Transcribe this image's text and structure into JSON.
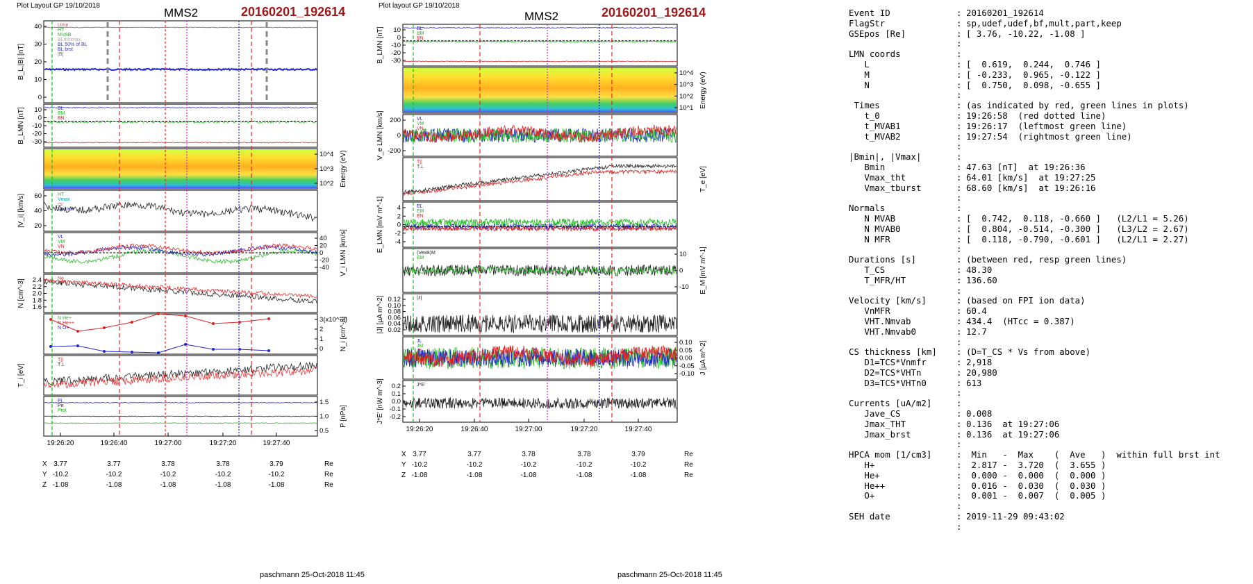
{
  "left_plot": {
    "layout_label": "Plot Layout GP 19/10/2018",
    "spacecraft": "MMS2",
    "event_id": "20160201_192614",
    "footer": "paschmann 25-Oct-2018 11:45",
    "time_ticks": [
      "19:26:20",
      "19:26:40",
      "19:27:00",
      "19:27:20",
      "19:27:40"
    ],
    "position_table": {
      "rows": [
        {
          "label": "X",
          "values": [
            "3.77",
            "3.77",
            "3.78",
            "3.78",
            "3.79"
          ],
          "unit": "Re"
        },
        {
          "label": "Y",
          "values": [
            "-10.2",
            "-10.2",
            "-10.2",
            "-10.2",
            "-10.2"
          ],
          "unit": "Re"
        },
        {
          "label": "Z",
          "values": [
            "-1.08",
            "-1.08",
            "-1.08",
            "-1.08",
            "-1.08"
          ],
          "unit": "Re"
        }
      ]
    },
    "panels": [
      {
        "ylabel": "B_L,|B| [nT]",
        "side": "left",
        "ticks": [
          "40",
          "30",
          "20",
          "10",
          "0"
        ],
        "legend": [
          "Ltmn",
          "HT",
          "MVAB",
          "BLminmax",
          "BL 50% of BL",
          "BL brst",
          "|B|"
        ],
        "legend_colors": [
          "#e33",
          "#3a3",
          "#3a3",
          "#aaa",
          "#33c",
          "#33c",
          "#666"
        ]
      },
      {
        "ylabel": "B_LMN [nT]",
        "side": "left",
        "ticks": [
          "10",
          "0",
          "-10",
          "-20",
          "-30"
        ],
        "legend": [
          "BL",
          "BM",
          "BN"
        ],
        "legend_colors": [
          "#22c",
          "#2b2",
          "#d22"
        ]
      },
      {
        "ylabel": "Energy (eV)",
        "side": "right",
        "ticks": [
          "10^4",
          "10^3",
          "10^2"
        ],
        "legend": [],
        "legend_colors": []
      },
      {
        "ylabel": "|V_i| [km/s]",
        "side": "left",
        "ticks": [
          "60",
          "40",
          "20"
        ],
        "legend": [
          "HT",
          "Vmax",
          "cs",
          "Vp max"
        ],
        "legend_colors": [
          "#3a3",
          "#0aa",
          "#e33",
          "#33c"
        ]
      },
      {
        "ylabel": "V_i LMN [km/s]",
        "side": "right",
        "ticks": [
          "40",
          "20",
          "0",
          "-20",
          "-40"
        ],
        "legend": [
          "VL",
          "VM",
          "VN"
        ],
        "legend_colors": [
          "#22c",
          "#2b2",
          "#d22"
        ]
      },
      {
        "ylabel": "N [cm^-3]",
        "side": "left",
        "ticks": [
          "2.4",
          "2.2",
          "2.0",
          "1.8",
          "1.6"
        ],
        "legend": [
          "Ne",
          "Ni"
        ],
        "legend_colors": [
          "#e33",
          "#222"
        ]
      },
      {
        "ylabel": "N_i [cm^-3]",
        "side": "right",
        "ticks": [
          "3(x10^-2)",
          "2",
          "1",
          "0"
        ],
        "legend": [
          "N He+",
          "N He++",
          "N O+"
        ],
        "legend_colors": [
          "#2b2",
          "#d22",
          "#22c"
        ]
      },
      {
        "ylabel": "T_i [eV]",
        "side": "left",
        "ticks": [],
        "legend": [
          "T||",
          "T⊥"
        ],
        "legend_colors": [
          "#d22",
          "#222"
        ]
      },
      {
        "ylabel": "P [nPa]",
        "side": "right",
        "ticks": [
          "1.5",
          "1.0",
          "0.5"
        ],
        "legend": [
          "Pi",
          "Pe",
          "Ptot"
        ],
        "legend_colors": [
          "#22c",
          "#222",
          "#2b2"
        ]
      }
    ]
  },
  "mid_plot": {
    "layout_label": "Plot layout GP 19/10/2018",
    "spacecraft": "MMS2",
    "event_id": "20160201_192614",
    "footer": "paschmann 25-Oct-2018 11:45",
    "time_ticks": [
      "19:26:20",
      "19:26:40",
      "19:27:00",
      "19:27:20",
      "19:27:40"
    ],
    "position_table": {
      "rows": [
        {
          "label": "X",
          "values": [
            "3.77",
            "3.77",
            "3.78",
            "3.78",
            "3.79"
          ],
          "unit": "Re"
        },
        {
          "label": "Y",
          "values": [
            "-10.2",
            "-10.2",
            "-10.2",
            "-10.2",
            "-10.2"
          ],
          "unit": "Re"
        },
        {
          "label": "Z",
          "values": [
            "-1.08",
            "-1.08",
            "-1.08",
            "-1.08",
            "-1.08"
          ],
          "unit": "Re"
        }
      ]
    },
    "panels": [
      {
        "ylabel": "B_LMN [nT]",
        "side": "left",
        "ticks": [
          "10",
          "0",
          "-10",
          "-20",
          "-30"
        ],
        "legend": [
          "BL",
          "BM",
          "BN"
        ],
        "legend_colors": [
          "#22c",
          "#2b2",
          "#d22"
        ]
      },
      {
        "ylabel": "Energy (eV)",
        "side": "right",
        "ticks": [
          "10^4",
          "10^3",
          "10^2",
          "10^1"
        ],
        "legend": [],
        "legend_colors": []
      },
      {
        "ylabel": "V_e LMN [km/s]",
        "side": "left",
        "ticks": [
          "200",
          "0",
          "-200"
        ],
        "legend": [
          "VL",
          "VM",
          "VN"
        ],
        "legend_colors": [
          "#22c",
          "#2b2",
          "#d22"
        ]
      },
      {
        "ylabel": "T_e [eV]",
        "side": "right",
        "ticks": [],
        "legend": [
          "T||",
          "T⊥"
        ],
        "legend_colors": [
          "#d22",
          "#222"
        ]
      },
      {
        "ylabel": "E_LMN [mV m^-1]",
        "side": "left",
        "ticks": [
          "4",
          "2",
          "0",
          "-2",
          "-4"
        ],
        "legend": [
          "EL",
          "EM",
          "EN"
        ],
        "legend_colors": [
          "#22c",
          "#2b2",
          "#d22"
        ]
      },
      {
        "ylabel": "E_M [mV m^-1]",
        "side": "right",
        "ticks": [
          "10",
          "0",
          "-10"
        ],
        "legend": [
          "(VexB)M",
          "EM"
        ],
        "legend_colors": [
          "#222",
          "#2b2"
        ]
      },
      {
        "ylabel": "|J| [μA m^-2]",
        "side": "left",
        "ticks": [
          "0.12",
          "0.10",
          "0.08",
          "0.06",
          "0.04",
          "0.02"
        ],
        "legend": [
          "|J|"
        ],
        "legend_colors": [
          "#222"
        ]
      },
      {
        "ylabel": "J [μA m^-2]",
        "side": "right",
        "ticks": [
          "0.10",
          "0.05",
          "0.00",
          "-0.05",
          "-0.10"
        ],
        "legend": [
          "JL",
          "JM",
          "JN",
          "Jmax2"
        ],
        "legend_colors": [
          "#22c",
          "#2b2",
          "#d22",
          "#d2d"
        ]
      },
      {
        "ylabel": "J*E' [nW m^-3]",
        "side": "left",
        "ticks": [
          "0.2",
          "0.1",
          "0.0",
          "-0.1",
          "-0.2"
        ],
        "legend": [
          "J*E'"
        ],
        "legend_colors": [
          "#222"
        ]
      }
    ]
  },
  "info": {
    "rows": [
      {
        "key": "Event ID",
        "value": "20160201_192614"
      },
      {
        "key": "FlagStr",
        "value": "sp,udef,udef,bf,mult,part,keep"
      },
      {
        "key": "GSEpos [Re]",
        "value": "[ 3.76, -10.22, -1.08 ]"
      },
      {
        "key": "",
        "value": ""
      },
      {
        "key": "LMN coords",
        "value": ""
      },
      {
        "key": "   L",
        "value": "[  0.619,  0.244,  0.746 ]"
      },
      {
        "key": "   M",
        "value": "[ -0.233,  0.965, -0.122 ]"
      },
      {
        "key": "   N",
        "value": "[  0.750,  0.098, -0.655 ]"
      },
      {
        "key": "",
        "value": ""
      },
      {
        "key": " Times",
        "value": "(as indicated by red, green lines in plots)"
      },
      {
        "key": "   t_0",
        "value": "19:26:58  (red dotted line)"
      },
      {
        "key": "   t_MVAB1",
        "value": "19:26:17  (leftmost green line)"
      },
      {
        "key": "   t_MVAB2",
        "value": "19:27:54  (rightmost green line)"
      },
      {
        "key": "",
        "value": ""
      },
      {
        "key": "|Bmin|, |Vmax|",
        "value": ""
      },
      {
        "key": "   Bmin",
        "value": "47.63 [nT]  at 19:26:36"
      },
      {
        "key": "   Vmax_tht",
        "value": "64.01 [km/s]  at 19:27:25"
      },
      {
        "key": "   Vmax_tburst",
        "value": "68.60 [km/s]  at 19:26:16"
      },
      {
        "key": "",
        "value": ""
      },
      {
        "key": "Normals",
        "value": ""
      },
      {
        "key": "   N MVAB",
        "value": "[  0.742,  0.118, -0.660 ]   (L2/L1 = 5.26)"
      },
      {
        "key": "   N MVAB0",
        "value": "[  0.804, -0.514, -0.300 ]   (L3/L2 = 2.67)"
      },
      {
        "key": "   N MFR",
        "value": "[  0.118, -0.790, -0.601 ]   (L2/L1 = 2.27)"
      },
      {
        "key": "",
        "value": ""
      },
      {
        "key": "Durations [s]",
        "value": "(between red, resp green lines)"
      },
      {
        "key": "   T_CS",
        "value": "48.30"
      },
      {
        "key": "   T_MFR/HT",
        "value": "136.60"
      },
      {
        "key": "",
        "value": ""
      },
      {
        "key": "Velocity [km/s]",
        "value": "(based on FPI ion data)"
      },
      {
        "key": "   VnMFR",
        "value": "60.4"
      },
      {
        "key": "   VHT.Nmvab",
        "value": "434.4  (HTcc = 0.387)"
      },
      {
        "key": "   VHT.Nmvab0",
        "value": "12.7"
      },
      {
        "key": "",
        "value": ""
      },
      {
        "key": "CS thickness [km]",
        "value": "(D=T_CS * Vs from above)"
      },
      {
        "key": "   D1=TCS*Vnmfr",
        "value": "2,918"
      },
      {
        "key": "   D2=TCS*VHTn",
        "value": "20,980"
      },
      {
        "key": "   D3=TCS*VHTn0",
        "value": "613"
      },
      {
        "key": "",
        "value": ""
      },
      {
        "key": "Currents [uA/m2]",
        "value": ""
      },
      {
        "key": "   Jave_CS",
        "value": "0.008"
      },
      {
        "key": "   Jmax_THT",
        "value": "0.136  at 19:27:06"
      },
      {
        "key": "   Jmax_brst",
        "value": "0.136  at 19:27:06"
      },
      {
        "key": "",
        "value": ""
      },
      {
        "key": "HPCA mom [1/cm3]",
        "value": " Min   -  Max    (  Ave   )  within full brst int"
      },
      {
        "key": "   H+",
        "value": " 2.817 -  3.720  (  3.655 )"
      },
      {
        "key": "   He+",
        "value": " 0.000 -  0.000  (  0.000 )"
      },
      {
        "key": "   He++",
        "value": " 0.016 -  0.030  (  0.030 )"
      },
      {
        "key": "   O+",
        "value": " 0.001 -  0.007  (  0.005 )"
      },
      {
        "key": "",
        "value": ""
      },
      {
        "key": "SEH date",
        "value": "2019-11-29 09:43:02"
      },
      {
        "key": "",
        "value": ""
      }
    ]
  },
  "chart_data": [
    {
      "type": "line",
      "title": "MMS2 20160201_192614",
      "x_unit": "UT",
      "x_range": [
        "19:26:14",
        "19:27:54"
      ],
      "markers": {
        "red_dashed": [
          "19:26:41",
          "19:27:29"
        ],
        "green_dashed": [
          "19:26:17"
        ],
        "magenta_dotted": [
          "19:27:06"
        ],
        "blue_dotted": [
          "19:27:20"
        ]
      },
      "series": [
        {
          "name": "BL",
          "panel": "B_L,|B| [nT]",
          "x": [
            "19:26:20",
            "19:26:40",
            "19:27:00",
            "19:27:20",
            "19:27:40"
          ],
          "values": [
            17,
            16,
            17,
            17,
            18
          ]
        },
        {
          "name": "Ni",
          "panel": "N [cm^-3]",
          "x": [
            "19:26:20",
            "19:26:40",
            "19:27:00",
            "19:27:20",
            "19:27:40"
          ],
          "values": [
            2.3,
            2.3,
            2.1,
            2.0,
            2.0
          ]
        },
        {
          "name": "|Vi|",
          "panel": "|V_i| [km/s]",
          "x": [
            "19:26:20",
            "19:26:40",
            "19:27:00",
            "19:27:20",
            "19:27:40"
          ],
          "values": [
            40,
            30,
            25,
            30,
            28
          ]
        },
        {
          "name": "N He++",
          "panel": "N_i [cm^-3]",
          "x": [
            "19:26:16",
            "19:26:22",
            "19:26:35",
            "19:26:50",
            "19:27:05",
            "19:27:15",
            "19:27:28",
            "19:27:40"
          ],
          "values": [
            2.0,
            1.0,
            1.5,
            2.2,
            1.9,
            1.6,
            1.8,
            2.1
          ]
        },
        {
          "name": "N O+",
          "panel": "N_i [cm^-3]",
          "x": [
            "19:26:16",
            "19:26:25",
            "19:26:35",
            "19:26:55",
            "19:27:05",
            "19:27:15",
            "19:27:28",
            "19:27:40"
          ],
          "values": [
            0.4,
            0.4,
            0.2,
            0.1,
            0.5,
            0.3,
            0.3,
            0.2
          ]
        }
      ]
    },
    {
      "type": "line",
      "title": "MMS2 20160201_192614",
      "x_unit": "UT",
      "x_range": [
        "19:26:14",
        "19:27:54"
      ],
      "markers": {
        "red_dashed": [
          "19:26:41",
          "19:27:29"
        ],
        "green_dashed": [
          "19:26:17"
        ],
        "magenta_dotted": [
          "19:27:06"
        ],
        "blue_dotted": [
          "19:27:20"
        ]
      },
      "series": [
        {
          "name": "|J|",
          "panel": "|J| [μA m^-2]",
          "x": [
            "19:26:20",
            "19:26:40",
            "19:27:00",
            "19:27:20",
            "19:27:40"
          ],
          "values": [
            0.04,
            0.05,
            0.06,
            0.05,
            0.05
          ]
        }
      ]
    }
  ]
}
